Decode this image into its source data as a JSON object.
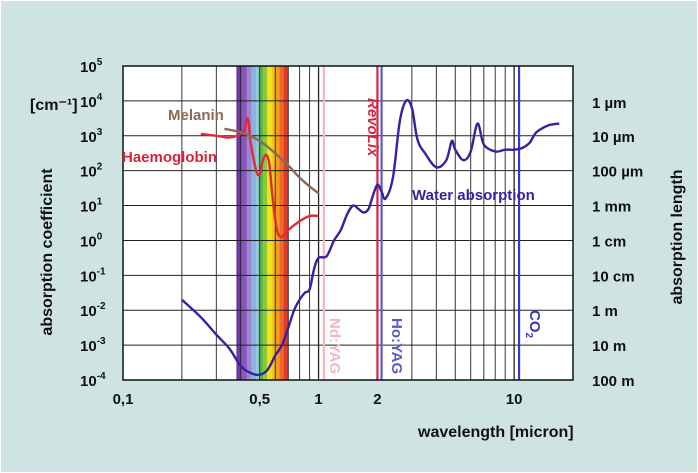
{
  "chart_data": {
    "type": "line",
    "x_scale": "log",
    "y_scale": "log",
    "xlim": [
      0.1,
      20
    ],
    "ylim_exponent": [
      -4,
      5
    ],
    "grid": true,
    "xlabel": "wavelength [micron]",
    "ylabel_left": "absorption coefficient",
    "ylabel_right": "absorption length",
    "yunit": "[cm⁻¹]",
    "x_ticks": [
      {
        "value": 0.1,
        "label": "0,1"
      },
      {
        "value": 0.5,
        "label": "0,5"
      },
      {
        "value": 1,
        "label": "1"
      },
      {
        "value": 2,
        "label": "2"
      },
      {
        "value": 10,
        "label": "10"
      }
    ],
    "y_ticks": [
      {
        "exp": 5,
        "label": "10",
        "sup": "5"
      },
      {
        "exp": 4,
        "label": "10",
        "sup": "4"
      },
      {
        "exp": 3,
        "label": "10",
        "sup": "3"
      },
      {
        "exp": 2,
        "label": "10",
        "sup": "2"
      },
      {
        "exp": 1,
        "label": "10",
        "sup": "1"
      },
      {
        "exp": 0,
        "label": "10",
        "sup": "0"
      },
      {
        "exp": -1,
        "label": "10",
        "sup": "-1"
      },
      {
        "exp": -2,
        "label": "10",
        "sup": "-2"
      },
      {
        "exp": -3,
        "label": "10",
        "sup": "-3"
      },
      {
        "exp": -4,
        "label": "10",
        "sup": "-4"
      }
    ],
    "right_ticks": [
      {
        "exp": 4,
        "label": "1 µm"
      },
      {
        "exp": 3,
        "label": "10 µm"
      },
      {
        "exp": 2,
        "label": "100 µm"
      },
      {
        "exp": 1,
        "label": "1 mm"
      },
      {
        "exp": 0,
        "label": "1 cm"
      },
      {
        "exp": -1,
        "label": "10 cm"
      },
      {
        "exp": -2,
        "label": "1 m"
      },
      {
        "exp": -3,
        "label": "10 m"
      },
      {
        "exp": -4,
        "label": "100 m"
      }
    ],
    "spectrum_bands": [
      {
        "from": 0.38,
        "to": 0.405,
        "color": "#6b3aa0"
      },
      {
        "from": 0.405,
        "to": 0.43,
        "color": "#8a55c0"
      },
      {
        "from": 0.43,
        "to": 0.455,
        "color": "#9a88cc"
      },
      {
        "from": 0.455,
        "to": 0.48,
        "color": "#8fb0e0"
      },
      {
        "from": 0.48,
        "to": 0.5,
        "color": "#8cc8d4"
      },
      {
        "from": 0.5,
        "to": 0.52,
        "color": "#5cb84a"
      },
      {
        "from": 0.52,
        "to": 0.545,
        "color": "#8cc830"
      },
      {
        "from": 0.545,
        "to": 0.575,
        "color": "#f0e020"
      },
      {
        "from": 0.575,
        "to": 0.6,
        "color": "#f5c810"
      },
      {
        "from": 0.6,
        "to": 0.63,
        "color": "#f39a20"
      },
      {
        "from": 0.63,
        "to": 0.66,
        "color": "#ee6a22"
      },
      {
        "from": 0.66,
        "to": 0.7,
        "color": "#e23a2a"
      }
    ],
    "laser_lines": [
      {
        "name": "Nd:YAG",
        "x": 1.064,
        "color": "#f2b8c0"
      },
      {
        "name": "RevoLix",
        "x": 2.0,
        "color": "#d8243a"
      },
      {
        "name": "Ho:YAG",
        "x": 2.1,
        "color": "#5a5ad0"
      },
      {
        "name": "CO",
        "sub": "2",
        "x": 10.6,
        "color": "#3838c0"
      }
    ],
    "series": [
      {
        "name": "Water absorption",
        "color": "#3a1fa0",
        "points": [
          [
            0.2,
            -1.7
          ],
          [
            0.25,
            -2.2
          ],
          [
            0.3,
            -2.7
          ],
          [
            0.35,
            -3.1
          ],
          [
            0.4,
            -3.6
          ],
          [
            0.45,
            -3.8
          ],
          [
            0.5,
            -3.85
          ],
          [
            0.55,
            -3.7
          ],
          [
            0.6,
            -3.3
          ],
          [
            0.65,
            -3.0
          ],
          [
            0.7,
            -2.5
          ],
          [
            0.75,
            -2.0
          ],
          [
            0.8,
            -1.7
          ],
          [
            0.85,
            -1.5
          ],
          [
            0.9,
            -1.4
          ],
          [
            0.95,
            -0.8
          ],
          [
            1.0,
            -0.5
          ],
          [
            1.1,
            -0.45
          ],
          [
            1.2,
            0.0
          ],
          [
            1.3,
            0.3
          ],
          [
            1.4,
            0.75
          ],
          [
            1.5,
            1.0
          ],
          [
            1.6,
            0.9
          ],
          [
            1.7,
            0.8
          ],
          [
            1.8,
            0.9
          ],
          [
            1.9,
            1.3
          ],
          [
            2.0,
            1.6
          ],
          [
            2.1,
            1.4
          ],
          [
            2.2,
            1.2
          ],
          [
            2.4,
            1.8
          ],
          [
            2.6,
            3.4
          ],
          [
            2.8,
            4.0
          ],
          [
            3.0,
            3.8
          ],
          [
            3.2,
            2.9
          ],
          [
            3.5,
            2.5
          ],
          [
            4.0,
            2.1
          ],
          [
            4.5,
            2.3
          ],
          [
            4.8,
            2.85
          ],
          [
            5.0,
            2.6
          ],
          [
            5.5,
            2.3
          ],
          [
            6.0,
            2.55
          ],
          [
            6.5,
            3.35
          ],
          [
            7.0,
            2.75
          ],
          [
            8.0,
            2.55
          ],
          [
            9.0,
            2.6
          ],
          [
            10.0,
            2.6
          ],
          [
            11.0,
            2.65
          ],
          [
            12.0,
            2.8
          ],
          [
            13.0,
            3.1
          ],
          [
            15.0,
            3.3
          ],
          [
            17.0,
            3.35
          ]
        ]
      },
      {
        "name": "Haemoglobin",
        "color": "#e02a36",
        "points": [
          [
            0.25,
            3.05
          ],
          [
            0.3,
            3.0
          ],
          [
            0.35,
            2.95
          ],
          [
            0.4,
            3.05
          ],
          [
            0.42,
            3.2
          ],
          [
            0.43,
            3.5
          ],
          [
            0.44,
            3.35
          ],
          [
            0.45,
            2.8
          ],
          [
            0.48,
            2.0
          ],
          [
            0.5,
            1.9
          ],
          [
            0.52,
            2.3
          ],
          [
            0.54,
            2.45
          ],
          [
            0.56,
            2.2
          ],
          [
            0.58,
            1.3
          ],
          [
            0.6,
            0.6
          ],
          [
            0.62,
            0.2
          ],
          [
            0.65,
            0.1
          ],
          [
            0.7,
            0.3
          ],
          [
            0.8,
            0.55
          ],
          [
            0.9,
            0.7
          ],
          [
            1.0,
            0.7
          ]
        ]
      },
      {
        "name": "Melanin",
        "color": "#8b6a56",
        "points": [
          [
            0.33,
            3.2
          ],
          [
            0.4,
            3.1
          ],
          [
            0.5,
            2.85
          ],
          [
            0.6,
            2.5
          ],
          [
            0.7,
            2.15
          ],
          [
            0.8,
            1.8
          ],
          [
            0.9,
            1.55
          ],
          [
            1.0,
            1.35
          ]
        ]
      }
    ]
  },
  "labels": {
    "melanin": "Melanin",
    "haemoglobin": "Haemoglobin",
    "water": "Water absorption",
    "revolix": "RevoLix",
    "ndyag": "Nd:YAG",
    "hoyag": "Ho:YAG",
    "co2": "CO",
    "co2_sub": "2"
  }
}
